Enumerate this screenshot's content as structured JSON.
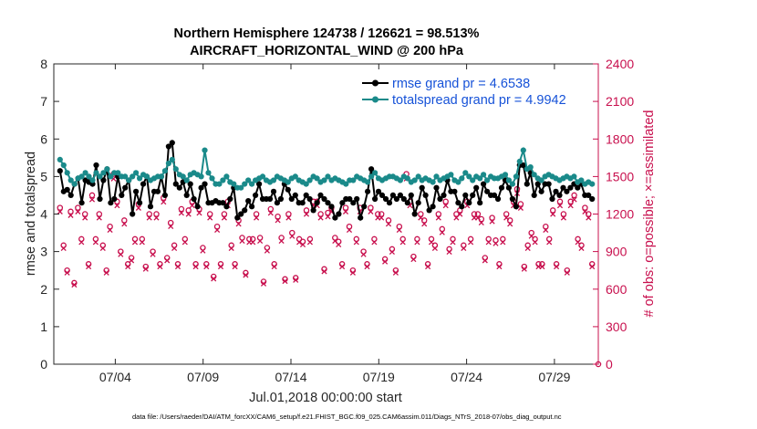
{
  "chart_data": {
    "type": "line",
    "title": "Northern Hemisphere 124738 / 126621 = 98.513%",
    "subtitle": "AIRCRAFT_HORIZONTAL_WIND @ 200 hPa",
    "xlabel": "Jul.01,2018 00:00:00 start",
    "ylabel": "rmse and totalspread",
    "y2label": "# of obs: o=possible; ×=assimilated",
    "footnote": "data file: /Users/raeder/DAI/ATM_forcXX/CAM6_setup/f.e21.FHIST_BGC.f09_025.CAM6assim.011/Diags_NTrS_2018-07/obs_diag_output.nc",
    "xlim": [
      1.0,
      32.0
    ],
    "ylim": [
      0,
      8
    ],
    "y2lim": [
      0,
      2400
    ],
    "x_ticks": [
      4.5,
      9.5,
      14.5,
      19.5,
      24.5,
      29.5
    ],
    "x_tick_labels": [
      "07/04",
      "07/09",
      "07/14",
      "07/19",
      "07/24",
      "07/29"
    ],
    "y_ticks": [
      0,
      1,
      2,
      3,
      4,
      5,
      6,
      7,
      8
    ],
    "y2_ticks": [
      0,
      300,
      600,
      900,
      1200,
      1500,
      1800,
      2100,
      2400
    ],
    "legend": [
      "rmse grand pr = 4.6538",
      "totalspread grand pr = 4.9942"
    ],
    "series": [
      {
        "name": "rmse",
        "color": "#000000",
        "values": [
          5.15,
          4.6,
          4.65,
          4.5,
          4.8,
          4.95,
          4.3,
          4.9,
          4.85,
          4.8,
          5.3,
          4.4,
          4.9,
          5.2,
          4.3,
          4.4,
          5.0,
          4.5,
          4.7,
          4.9,
          4.0,
          4.6,
          4.3,
          4.8,
          5.0,
          4.2,
          4.6,
          4.6,
          5.0,
          4.5,
          5.8,
          5.9,
          4.8,
          4.7,
          4.85,
          4.5,
          4.8,
          4.4,
          4.2,
          4.7,
          4.8,
          4.3,
          4.3,
          4.35,
          4.3,
          4.3,
          4.2,
          4.4,
          4.7,
          3.9,
          4.0,
          4.1,
          4.35,
          4.2,
          4.5,
          4.8,
          4.4,
          4.4,
          4.4,
          4.6,
          4.3,
          4.4,
          4.8,
          4.65,
          4.4,
          4.5,
          4.3,
          4.3,
          4.5,
          4.4,
          4.1,
          4.3,
          4.5,
          4.4,
          4.3,
          4.2,
          3.9,
          4.0,
          4.3,
          4.4,
          4.4,
          4.3,
          4.4,
          3.9,
          4.2,
          4.6,
          5.2,
          4.4,
          4.6,
          4.5,
          4.4,
          4.3,
          4.5,
          4.4,
          4.5,
          4.4,
          4.3,
          4.5,
          4.0,
          4.3,
          4.7,
          4.5,
          4.1,
          4.2,
          4.7,
          4.4,
          4.5,
          4.9,
          4.6,
          4.6,
          4.3,
          4.2,
          4.5,
          4.3,
          4.5,
          4.7,
          4.3,
          4.8,
          4.6,
          4.5,
          4.5,
          4.4,
          4.7,
          4.9,
          4.7,
          4.4,
          4.2,
          5.3,
          5.3,
          4.8,
          5.1,
          4.5,
          4.8,
          4.6,
          4.8,
          4.8,
          4.4,
          4.6,
          4.5,
          4.7,
          4.6,
          4.7,
          4.8,
          4.7,
          4.8,
          4.5,
          4.5,
          4.4
        ]
      },
      {
        "name": "totalspread",
        "color": "#1a8a8a",
        "values": [
          5.45,
          5.3,
          5.1,
          4.9,
          4.8,
          4.95,
          5.0,
          5.1,
          5.0,
          4.9,
          5.1,
          5.0,
          5.1,
          5.2,
          5.0,
          5.1,
          5.1,
          5.0,
          5.0,
          4.9,
          5.0,
          5.1,
          4.95,
          5.05,
          5.0,
          4.9,
          4.95,
          5.0,
          5.0,
          5.15,
          5.35,
          5.45,
          5.2,
          5.05,
          5.0,
          4.9,
          5.05,
          5.1,
          5.05,
          5.0,
          5.7,
          5.1,
          4.95,
          4.8,
          4.8,
          4.9,
          5.0,
          4.85,
          4.8,
          4.7,
          4.7,
          4.8,
          4.9,
          4.8,
          4.9,
          4.95,
          5.0,
          4.9,
          4.85,
          4.9,
          5.0,
          4.95,
          4.9,
          4.85,
          4.95,
          5.0,
          4.9,
          4.85,
          4.8,
          4.9,
          5.0,
          4.95,
          4.85,
          4.9,
          5.0,
          4.9,
          4.95,
          4.9,
          4.85,
          4.8,
          4.9,
          4.9,
          5.0,
          4.95,
          4.9,
          4.85,
          5.0,
          5.1,
          4.95,
          4.9,
          4.95,
          5.0,
          5.0,
          4.95,
          4.9,
          5.0,
          4.95,
          4.85,
          4.9,
          5.0,
          4.9,
          4.95,
          4.9,
          4.85,
          5.0,
          4.9,
          4.95,
          5.0,
          5.05,
          4.9,
          4.85,
          4.95,
          5.1,
          5.0,
          4.9,
          5.0,
          4.95,
          5.05,
          4.9,
          5.0,
          4.95,
          4.95,
          5.0,
          5.05,
          4.9,
          4.8,
          5.0,
          5.4,
          5.7,
          5.2,
          5.25,
          5.05,
          4.95,
          4.9,
          5.0,
          5.05,
          5.0,
          4.95,
          4.9,
          4.95,
          5.0,
          4.95,
          5.0,
          4.85,
          4.9,
          4.8,
          4.85,
          4.8
        ]
      }
    ],
    "obs_possible": [
      1250,
      950,
      750,
      1220,
      650,
      1250,
      1000,
      1200,
      800,
      1350,
      1000,
      1200,
      950,
      750,
      1100,
      1520,
      1300,
      900,
      1150,
      800,
      850,
      1000,
      1280,
      1000,
      780,
      1200,
      900,
      1200,
      800,
      1330,
      850,
      1130,
      950,
      800,
      1240,
      1000,
      1230,
      1300,
      800,
      1240,
      930,
      800,
      1200,
      700,
      1100,
      800,
      1200,
      1300,
      950,
      800,
      1150,
      1010,
      730,
      1000,
      1000,
      1200,
      1010,
      660,
      930,
      1240,
      800,
      1180,
      1010,
      680,
      1200,
      1050,
      690,
      1000,
      980,
      1230,
      1000,
      1300,
      1300,
      1200,
      760,
      1210,
      1250,
      1010,
      980,
      800,
      1250,
      1100,
      750,
      1000,
      1250,
      900,
      800,
      1250,
      1000,
      1200,
      1200,
      840,
      1150,
      920,
      750,
      1100,
      1000,
      1520,
      1300,
      860,
      1000,
      1200,
      1150,
      800,
      1000,
      950,
      1200,
      1080,
      1300,
      920,
      1000,
      1200,
      1230,
      950,
      1300,
      1000,
      1200,
      1200,
      1160,
      850,
      1000,
      1170,
      990,
      800,
      1000,
      1200,
      1150,
      1300,
      1400,
      1280,
      780,
      950,
      1050,
      1000,
      800,
      800,
      1100,
      1000,
      1230,
      800,
      1300,
      1200,
      750,
      1300,
      1350,
      1000,
      950,
      1250,
      1200,
      800
    ]
  }
}
